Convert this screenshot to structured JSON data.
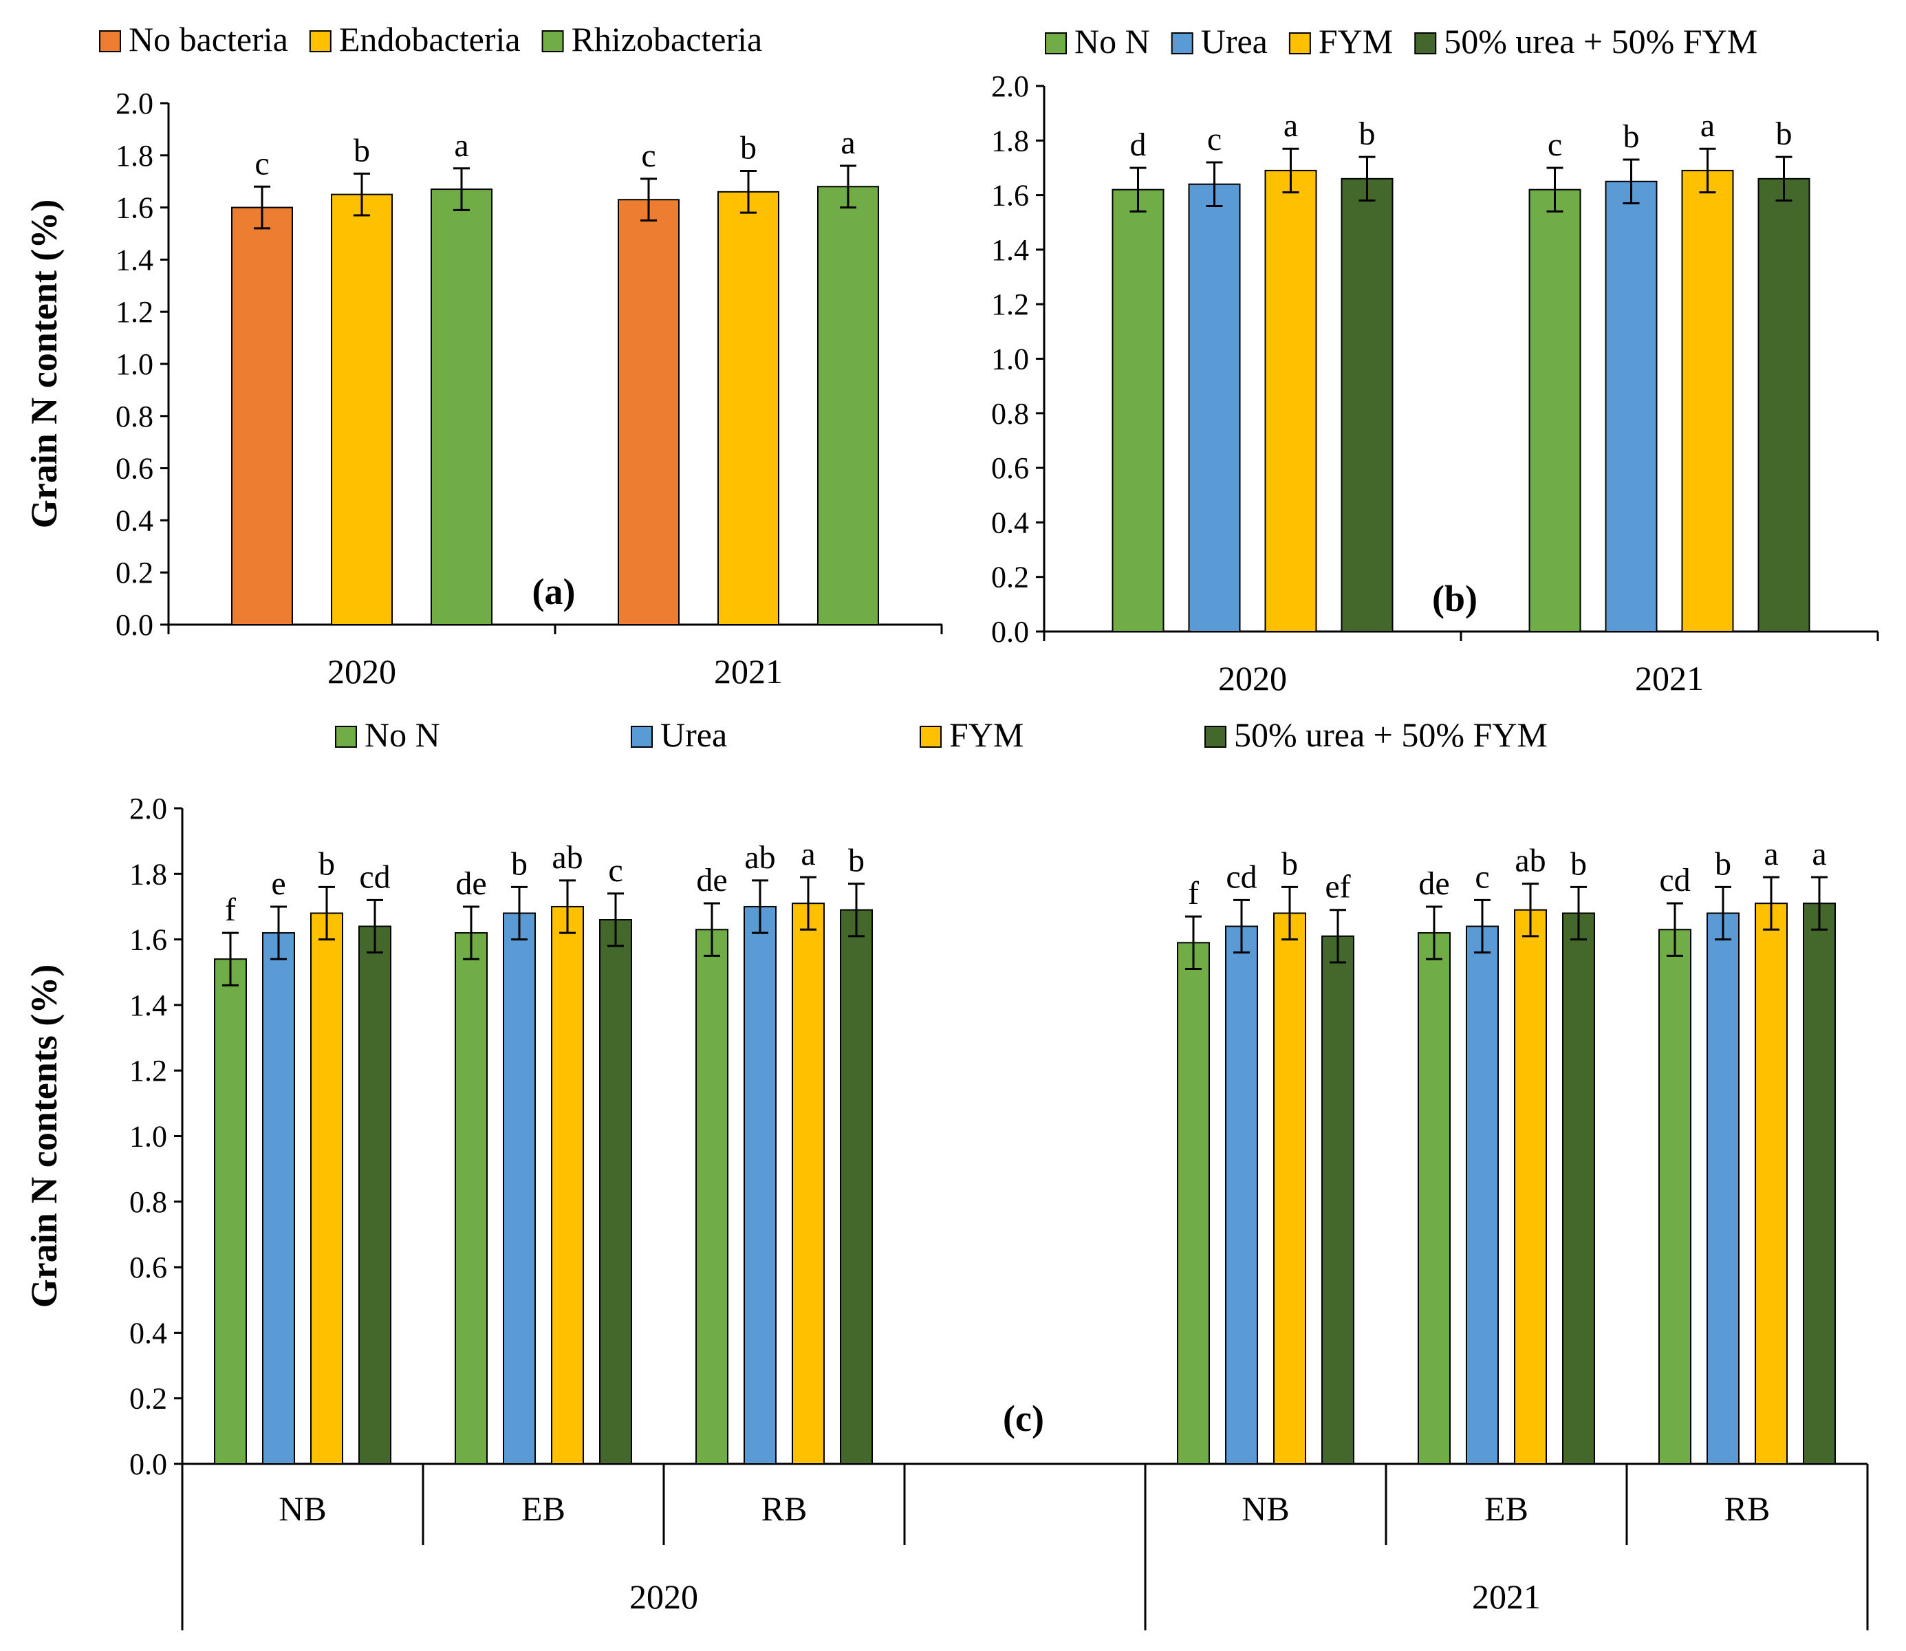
{
  "colors": {
    "no_bacteria": "#ED7D31",
    "endobacteria": "#FFC000",
    "rhizobacteria": "#70AD47",
    "no_n": "#70AD47",
    "urea": "#5B9BD5",
    "fym": "#FFC000",
    "mix": "#44682B"
  },
  "chart_data": [
    {
      "panel": "(a)",
      "type": "bar",
      "ylabel": "Grain N content (%)",
      "ylim": [
        0,
        2.0
      ],
      "yticks": [
        "0.0",
        "0.2",
        "0.4",
        "0.6",
        "0.8",
        "1.0",
        "1.2",
        "1.4",
        "1.6",
        "1.8",
        "2.0"
      ],
      "categories": [
        "2020",
        "2021"
      ],
      "series": [
        {
          "name": "No bacteria",
          "color_key": "no_bacteria",
          "values": [
            1.6,
            1.63
          ],
          "errors": [
            0.08,
            0.08
          ],
          "letters": [
            "c",
            "c"
          ]
        },
        {
          "name": "Endobacteria",
          "color_key": "endobacteria",
          "values": [
            1.65,
            1.66
          ],
          "errors": [
            0.08,
            0.08
          ],
          "letters": [
            "b",
            "b"
          ]
        },
        {
          "name": "Rhizobacteria",
          "color_key": "rhizobacteria",
          "values": [
            1.67,
            1.68
          ],
          "errors": [
            0.08,
            0.08
          ],
          "letters": [
            "a",
            "a"
          ]
        }
      ]
    },
    {
      "panel": "(b)",
      "type": "bar",
      "ylabel": "",
      "ylim": [
        0,
        2.0
      ],
      "yticks": [
        "0.0",
        "0.2",
        "0.4",
        "0.6",
        "0.8",
        "1.0",
        "1.2",
        "1.4",
        "1.6",
        "1.8",
        "2.0"
      ],
      "categories": [
        "2020",
        "2021"
      ],
      "series": [
        {
          "name": "No N",
          "color_key": "no_n",
          "values": [
            1.62,
            1.62
          ],
          "errors": [
            0.08,
            0.08
          ],
          "letters": [
            "d",
            "c"
          ]
        },
        {
          "name": "Urea",
          "color_key": "urea",
          "values": [
            1.64,
            1.65
          ],
          "errors": [
            0.08,
            0.08
          ],
          "letters": [
            "c",
            "b"
          ]
        },
        {
          "name": "FYM",
          "color_key": "fym",
          "values": [
            1.69,
            1.69
          ],
          "errors": [
            0.08,
            0.08
          ],
          "letters": [
            "a",
            "a"
          ]
        },
        {
          "name": "50% urea + 50% FYM",
          "color_key": "mix",
          "values": [
            1.66,
            1.66
          ],
          "errors": [
            0.08,
            0.08
          ],
          "letters": [
            "b",
            "b"
          ]
        }
      ]
    },
    {
      "panel": "(c)",
      "type": "bar",
      "ylabel": "Grain N contents (%)",
      "ylim": [
        0,
        2.0
      ],
      "yticks": [
        "0.0",
        "0.2",
        "0.4",
        "0.6",
        "0.8",
        "1.0",
        "1.2",
        "1.4",
        "1.6",
        "1.8",
        "2.0"
      ],
      "categories": [
        "NB",
        "EB",
        "RB",
        "",
        "NB",
        "EB",
        "RB"
      ],
      "groups": [
        {
          "label": "2020",
          "span": [
            0,
            3
          ]
        },
        {
          "label": "2021",
          "span": [
            4,
            6
          ]
        }
      ],
      "series": [
        {
          "name": "No N",
          "color_key": "no_n",
          "values": [
            1.54,
            1.62,
            1.63,
            null,
            1.59,
            1.62,
            1.63
          ],
          "errors": [
            0.08,
            0.08,
            0.08,
            null,
            0.08,
            0.08,
            0.08
          ],
          "letters": [
            "f",
            "de",
            "de",
            "",
            "f",
            "de",
            "cd"
          ]
        },
        {
          "name": "Urea",
          "color_key": "urea",
          "values": [
            1.62,
            1.68,
            1.7,
            null,
            1.64,
            1.64,
            1.68
          ],
          "errors": [
            0.08,
            0.08,
            0.08,
            null,
            0.08,
            0.08,
            0.08
          ],
          "letters": [
            "e",
            "b",
            "ab",
            "",
            "cd",
            "c",
            "b"
          ]
        },
        {
          "name": "FYM",
          "color_key": "fym",
          "values": [
            1.68,
            1.7,
            1.71,
            null,
            1.68,
            1.69,
            1.71
          ],
          "errors": [
            0.08,
            0.08,
            0.08,
            null,
            0.08,
            0.08,
            0.08
          ],
          "letters": [
            "b",
            "ab",
            "a",
            "",
            "b",
            "ab",
            "a"
          ]
        },
        {
          "name": "50% urea + 50% FYM",
          "color_key": "mix",
          "values": [
            1.64,
            1.66,
            1.69,
            null,
            1.61,
            1.68,
            1.71
          ],
          "errors": [
            0.08,
            0.08,
            0.08,
            null,
            0.08,
            0.08,
            0.08
          ],
          "letters": [
            "cd",
            "c",
            "b",
            "",
            "ef",
            "b",
            "a"
          ]
        }
      ]
    }
  ]
}
